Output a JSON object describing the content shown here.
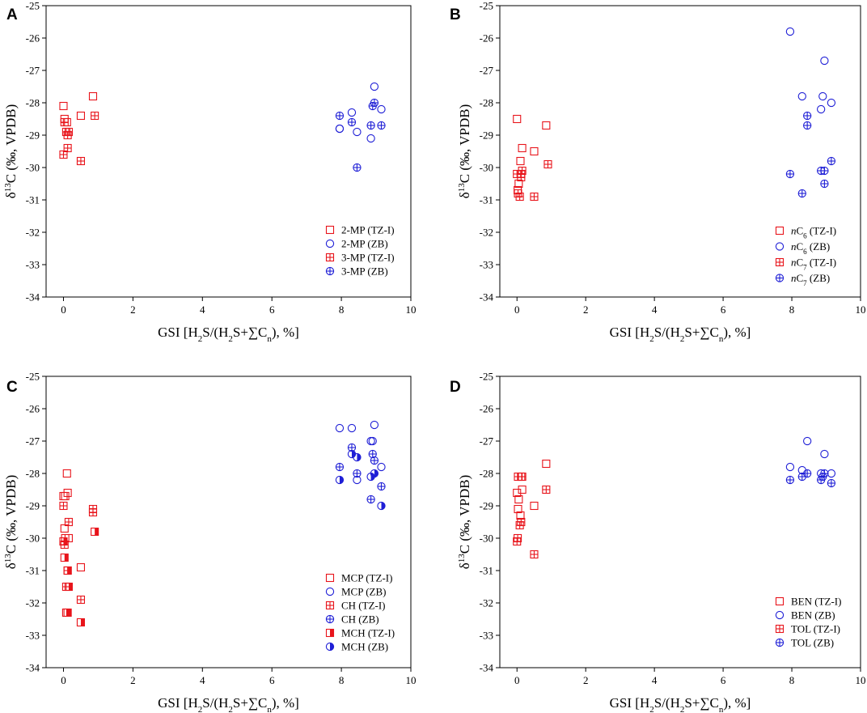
{
  "colors": {
    "tz": "#e8141b",
    "zb": "#1f1fd6",
    "axis": "#000000"
  },
  "chart_data": [
    {
      "panel": "A",
      "type": "scatter",
      "xlabel": "GSI [H2S/(H2S+∑Cn), %]",
      "xlabel_parts": [
        "GSI [H",
        "2",
        "S/(H",
        "2",
        "S+∑C",
        "n",
        "), %]"
      ],
      "ylabel_parts": [
        "δ",
        "13",
        "C (‰, VPDB)"
      ],
      "xlim": [
        -0.5,
        10
      ],
      "ylim": [
        -34,
        -25
      ],
      "xticks": [
        0,
        2,
        4,
        6,
        8,
        10
      ],
      "yticks": [
        -25,
        -26,
        -27,
        -28,
        -29,
        -30,
        -31,
        -32,
        -33,
        -34
      ],
      "series": [
        {
          "name": "2-MP (TZ-I)",
          "label_parts": [
            "2-MP (TZ-I)"
          ],
          "marker": "square",
          "color": "tz",
          "x": [
            0,
            0.03,
            0.1,
            0.5,
            0.85
          ],
          "y": [
            -28.1,
            -28.5,
            -28.6,
            -28.4,
            -27.8
          ]
        },
        {
          "name": "2-MP (ZB)",
          "label_parts": [
            "2-MP (ZB)"
          ],
          "marker": "circle",
          "color": "zb",
          "x": [
            7.95,
            8.3,
            8.45,
            8.85,
            8.95,
            9.15,
            7.95
          ],
          "y": [
            -28.8,
            -28.3,
            -28.9,
            -29.1,
            -27.5,
            -28.2,
            -28.8
          ]
        },
        {
          "name": "3-MP (TZ-I)",
          "label_parts": [
            "3-MP (TZ-I)"
          ],
          "marker": "square-cross",
          "color": "tz",
          "x": [
            0,
            0.03,
            0.08,
            0.12,
            0.15,
            0.12,
            0.5,
            0.9
          ],
          "y": [
            -29.6,
            -28.6,
            -28.9,
            -29.0,
            -28.9,
            -29.4,
            -29.8,
            -28.4
          ]
        },
        {
          "name": "3-MP (ZB)",
          "label_parts": [
            "3-MP (ZB)"
          ],
          "marker": "circle-cross",
          "color": "zb",
          "x": [
            7.95,
            8.3,
            8.45,
            8.85,
            8.9,
            8.95,
            9.15
          ],
          "y": [
            -28.4,
            -28.6,
            -30.0,
            -28.7,
            -28.1,
            -28.0,
            -28.7
          ]
        }
      ]
    },
    {
      "panel": "B",
      "type": "scatter",
      "xlabel": "GSI [H2S/(H2S+∑Cn), %]",
      "xlabel_parts": [
        "GSI [H",
        "2",
        "S/(H",
        "2",
        "S+∑C",
        "n",
        "), %]"
      ],
      "ylabel_parts": [
        "δ",
        "13",
        "C (‰, VPDB)"
      ],
      "xlim": [
        -0.5,
        10
      ],
      "ylim": [
        -34,
        -25
      ],
      "xticks": [
        0,
        2,
        4,
        6,
        8,
        10
      ],
      "yticks": [
        -25,
        -26,
        -27,
        -28,
        -29,
        -30,
        -31,
        -32,
        -33,
        -34
      ],
      "series": [
        {
          "name": "nC6 (TZ-I)",
          "label_parts": [
            "n",
            "C",
            "6",
            " (TZ-I)"
          ],
          "marker": "square",
          "color": "tz",
          "x": [
            0,
            0.05,
            0.1,
            0.15,
            0.5,
            0.85,
            0.02
          ],
          "y": [
            -28.5,
            -30.5,
            -29.8,
            -29.4,
            -29.5,
            -28.7,
            -30.7
          ]
        },
        {
          "name": "nC6 (ZB)",
          "label_parts": [
            "n",
            "C",
            "6",
            " (ZB)"
          ],
          "marker": "circle",
          "color": "zb",
          "x": [
            7.95,
            8.3,
            8.85,
            8.95,
            9.15,
            8.9
          ],
          "y": [
            -25.8,
            -27.8,
            -28.2,
            -26.7,
            -28.0,
            -27.8
          ]
        },
        {
          "name": "nC7 (TZ-I)",
          "label_parts": [
            "n",
            "C",
            "7",
            " (TZ-I)"
          ],
          "marker": "square-cross",
          "color": "tz",
          "x": [
            0,
            0.03,
            0.08,
            0.12,
            0.15,
            0.12,
            0.5,
            0.9
          ],
          "y": [
            -30.2,
            -30.8,
            -30.9,
            -30.3,
            -30.1,
            -30.2,
            -30.9,
            -29.9
          ]
        },
        {
          "name": "nC7 (ZB)",
          "label_parts": [
            "n",
            "C",
            "7",
            " (ZB)"
          ],
          "marker": "circle-cross",
          "color": "zb",
          "x": [
            7.95,
            8.3,
            8.45,
            8.45,
            8.85,
            8.95,
            8.95,
            9.15
          ],
          "y": [
            -30.2,
            -30.8,
            -28.4,
            -28.7,
            -30.1,
            -30.1,
            -30.5,
            -29.8
          ]
        }
      ]
    },
    {
      "panel": "C",
      "type": "scatter",
      "xlabel": "GSI [H2S/(H2S+∑Cn), %]",
      "xlabel_parts": [
        "GSI [H",
        "2",
        "S/(H",
        "2",
        "S+∑C",
        "n",
        "), %]"
      ],
      "ylabel_parts": [
        "δ",
        "13",
        "C (‰, VPDB)"
      ],
      "xlim": [
        -0.5,
        10
      ],
      "ylim": [
        -34,
        -25
      ],
      "xticks": [
        0,
        2,
        4,
        6,
        8,
        10
      ],
      "yticks": [
        -25,
        -26,
        -27,
        -28,
        -29,
        -30,
        -31,
        -32,
        -33,
        -34
      ],
      "series": [
        {
          "name": "MCP (TZ-I)",
          "label_parts": [
            "MCP (TZ-I)"
          ],
          "marker": "square",
          "color": "tz",
          "x": [
            0,
            0.03,
            0.05,
            0.1,
            0.12,
            0.15,
            0.5,
            0.05
          ],
          "y": [
            -28.7,
            -29.7,
            -30.0,
            -28.0,
            -28.6,
            -30.0,
            -30.9,
            -28.7
          ]
        },
        {
          "name": "MCP (ZB)",
          "label_parts": [
            "MCP (ZB)"
          ],
          "marker": "circle",
          "color": "zb",
          "x": [
            7.95,
            8.3,
            8.45,
            8.85,
            8.9,
            8.95,
            9.15
          ],
          "y": [
            -26.6,
            -26.6,
            -28.2,
            -27.0,
            -27.0,
            -26.5,
            -27.8
          ]
        },
        {
          "name": "CH (TZ-I)",
          "label_parts": [
            "CH  (TZ-I)"
          ],
          "marker": "square-cross",
          "color": "tz",
          "x": [
            0,
            0.03,
            0.08,
            0.12,
            0.15,
            0.5,
            0.85,
            0.85
          ],
          "y": [
            -29.0,
            -30.2,
            -31.5,
            -31.0,
            -29.5,
            -31.9,
            -29.1,
            -29.2
          ]
        },
        {
          "name": "CH (ZB)",
          "label_parts": [
            "CH  (ZB)"
          ],
          "marker": "circle-cross",
          "color": "zb",
          "x": [
            7.95,
            8.3,
            8.45,
            8.85,
            8.9,
            8.95,
            9.15
          ],
          "y": [
            -27.8,
            -27.2,
            -28.0,
            -28.8,
            -27.4,
            -27.6,
            -28.4
          ]
        },
        {
          "name": "MCH (TZ-I)",
          "label_parts": [
            "MCH (TZ-I)"
          ],
          "marker": "square-half",
          "color": "tz",
          "x": [
            0,
            0.03,
            0.08,
            0.12,
            0.15,
            0.5,
            0.9,
            0.12
          ],
          "y": [
            -30.1,
            -30.6,
            -32.3,
            -31.0,
            -31.5,
            -32.6,
            -29.8,
            -32.3
          ]
        },
        {
          "name": "MCH (ZB)",
          "label_parts": [
            "MCH (ZB)"
          ],
          "marker": "circle-half",
          "color": "zb",
          "x": [
            7.95,
            8.3,
            8.45,
            8.85,
            8.95,
            9.15
          ],
          "y": [
            -28.2,
            -27.4,
            -27.5,
            -28.1,
            -28.0,
            -29.0
          ]
        }
      ]
    },
    {
      "panel": "D",
      "type": "scatter",
      "xlabel": "GSI [H2S/(H2S+∑Cn), %]",
      "xlabel_parts": [
        "GSI [H",
        "2",
        "S/(H",
        "2",
        "S+∑C",
        "n",
        "), %]"
      ],
      "ylabel_parts": [
        "δ",
        "13",
        "C (‰, VPDB)"
      ],
      "xlim": [
        -0.5,
        10
      ],
      "ylim": [
        -34,
        -25
      ],
      "xticks": [
        0,
        2,
        4,
        6,
        8,
        10
      ],
      "yticks": [
        -25,
        -26,
        -27,
        -28,
        -29,
        -30,
        -31,
        -32,
        -33,
        -34
      ],
      "series": [
        {
          "name": "BEN (TZ-I)",
          "label_parts": [
            "BEN (TZ-I)"
          ],
          "marker": "square",
          "color": "tz",
          "x": [
            0,
            0.03,
            0.05,
            0.1,
            0.12,
            0.15,
            0.5,
            0.85
          ],
          "y": [
            -28.6,
            -29.1,
            -28.8,
            -29.3,
            -28.1,
            -28.5,
            -29.0,
            -27.7
          ]
        },
        {
          "name": "BEN (ZB)",
          "label_parts": [
            "BEN (ZB)"
          ],
          "marker": "circle",
          "color": "zb",
          "x": [
            7.95,
            8.3,
            8.45,
            8.85,
            8.95,
            9.15
          ],
          "y": [
            -27.8,
            -27.9,
            -27.0,
            -28.0,
            -27.4,
            -28.0
          ]
        },
        {
          "name": "TOL (TZ-I)",
          "label_parts": [
            "TOL (TZ-I)"
          ],
          "marker": "square-cross",
          "color": "tz",
          "x": [
            0,
            0.03,
            0.08,
            0.12,
            0.15,
            0.5,
            0.85,
            0.02
          ],
          "y": [
            -30.1,
            -28.1,
            -29.6,
            -29.5,
            -28.1,
            -30.5,
            -28.5,
            -30.0
          ]
        },
        {
          "name": "TOL (ZB)",
          "label_parts": [
            "TOL (ZB)"
          ],
          "marker": "circle-cross",
          "color": "zb",
          "x": [
            7.95,
            8.3,
            8.45,
            8.85,
            8.9,
            8.95,
            9.15
          ],
          "y": [
            -28.2,
            -28.1,
            -28.0,
            -28.2,
            -28.1,
            -28.0,
            -28.3
          ]
        }
      ]
    }
  ]
}
